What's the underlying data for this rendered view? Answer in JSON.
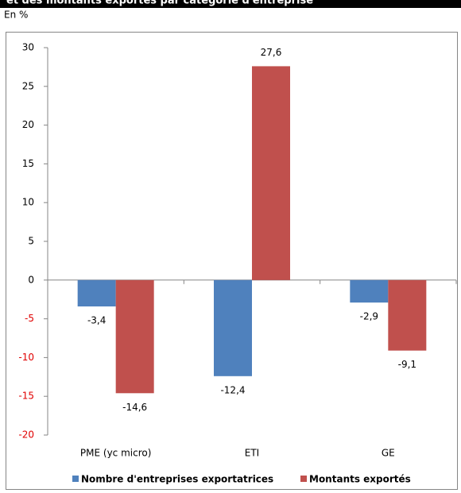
{
  "chart_data": {
    "type": "bar",
    "title": "et des montants exportés par catégorie d'entreprise",
    "subtitle": "En %",
    "categories": [
      "PME (yc micro)",
      "ETI",
      "GE"
    ],
    "series": [
      {
        "name": "Nombre d'entreprises exportatrices",
        "color": "#4f81bd",
        "values": [
          -3.4,
          -12.4,
          -2.9
        ],
        "value_labels": [
          "-3,4",
          "-12,4",
          "-2,9"
        ]
      },
      {
        "name": "Montants exportés",
        "color": "#c0504d",
        "values": [
          -14.6,
          27.6,
          -9.1
        ],
        "value_labels": [
          "-14,6",
          "27,6",
          "-9,1"
        ]
      }
    ],
    "ylim": [
      -20,
      30
    ],
    "yticks": [
      -20,
      -15,
      -10,
      -5,
      0,
      5,
      10,
      15,
      20,
      25,
      30
    ],
    "legend": "bottom"
  }
}
